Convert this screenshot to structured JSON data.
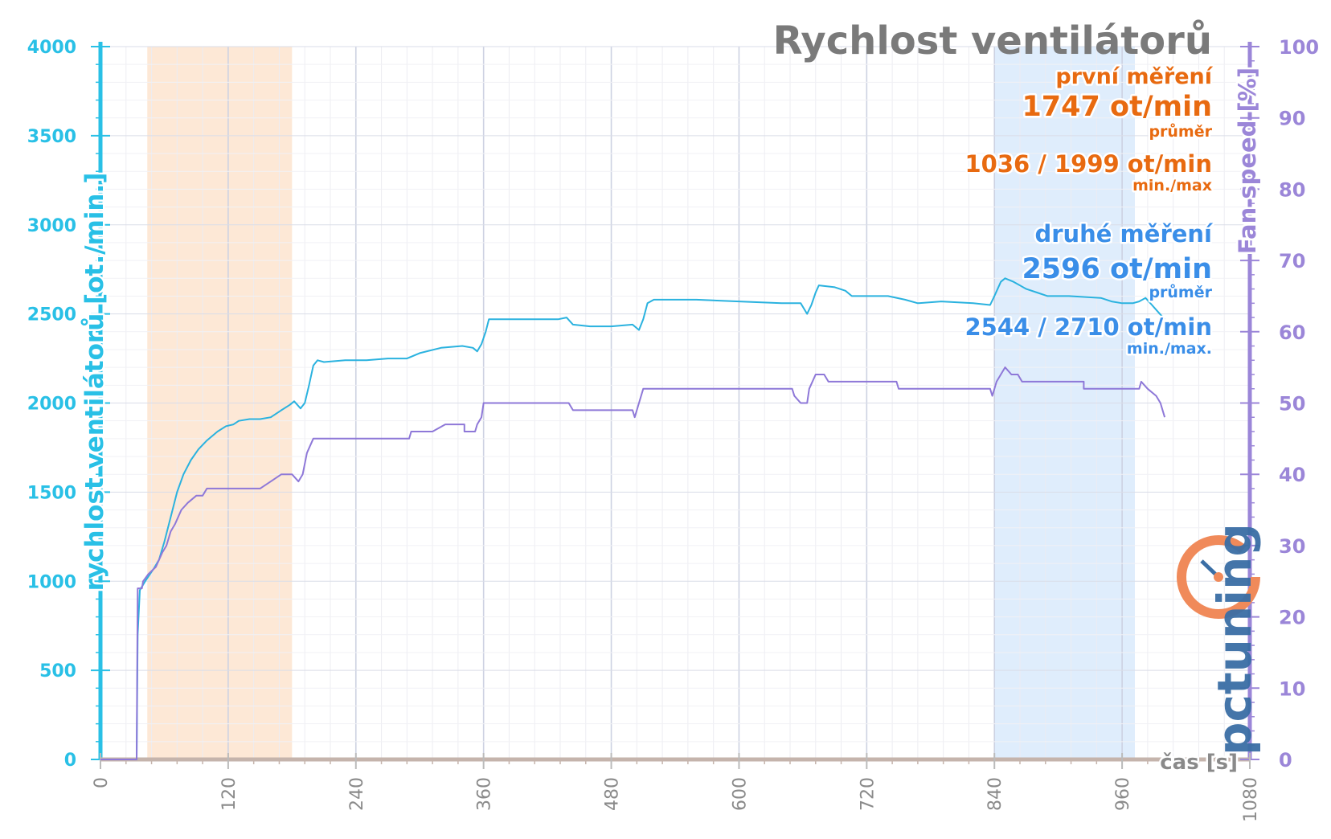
{
  "chart_data": {
    "type": "line",
    "title": "Rychlost ventilátorů",
    "xlabel": "čas [s]",
    "ylabel_left": "rychlost ventilátorů [ot./min.]",
    "ylabel_right": "Fan speed [%]",
    "xlim": [
      0,
      1080
    ],
    "ylim_left": [
      0,
      4000
    ],
    "ylim_right": [
      0,
      100
    ],
    "x_ticks": [
      "0",
      "120",
      "240",
      "360",
      "480",
      "600",
      "720",
      "840",
      "960",
      "1080"
    ],
    "y_ticks_left": [
      "0",
      "500",
      "1000",
      "1500",
      "2000",
      "2500",
      "3000",
      "3500",
      "4000"
    ],
    "y_ticks_right": [
      "0",
      "10",
      "20",
      "30",
      "40",
      "50",
      "60",
      "70",
      "80",
      "90",
      "100"
    ],
    "grid": true,
    "highlight_regions": [
      {
        "x_start": 44,
        "x_end": 180,
        "color": "#fde6d2"
      },
      {
        "x_start": 840,
        "x_end": 972,
        "color": "#dcebfc"
      }
    ],
    "series": [
      {
        "axis": "left",
        "color": "#2ab2df",
        "points": [
          [
            0,
            0
          ],
          [
            34,
            0
          ],
          [
            35,
            700
          ],
          [
            37,
            950
          ],
          [
            42,
            1000
          ],
          [
            50,
            1070
          ],
          [
            55,
            1120
          ],
          [
            60,
            1220
          ],
          [
            66,
            1360
          ],
          [
            72,
            1500
          ],
          [
            78,
            1600
          ],
          [
            85,
            1680
          ],
          [
            92,
            1740
          ],
          [
            100,
            1790
          ],
          [
            110,
            1840
          ],
          [
            118,
            1870
          ],
          [
            125,
            1880
          ],
          [
            130,
            1900
          ],
          [
            140,
            1910
          ],
          [
            150,
            1910
          ],
          [
            160,
            1920
          ],
          [
            170,
            1960
          ],
          [
            178,
            1990
          ],
          [
            182,
            2010
          ],
          [
            188,
            1970
          ],
          [
            192,
            2000
          ],
          [
            196,
            2100
          ],
          [
            200,
            2210
          ],
          [
            204,
            2240
          ],
          [
            210,
            2230
          ],
          [
            230,
            2240
          ],
          [
            250,
            2240
          ],
          [
            270,
            2250
          ],
          [
            288,
            2250
          ],
          [
            300,
            2280
          ],
          [
            320,
            2310
          ],
          [
            340,
            2320
          ],
          [
            350,
            2310
          ],
          [
            354,
            2290
          ],
          [
            358,
            2330
          ],
          [
            362,
            2400
          ],
          [
            365,
            2470
          ],
          [
            375,
            2470
          ],
          [
            400,
            2470
          ],
          [
            430,
            2470
          ],
          [
            438,
            2480
          ],
          [
            444,
            2440
          ],
          [
            460,
            2430
          ],
          [
            480,
            2430
          ],
          [
            500,
            2440
          ],
          [
            506,
            2410
          ],
          [
            510,
            2470
          ],
          [
            514,
            2560
          ],
          [
            520,
            2580
          ],
          [
            560,
            2580
          ],
          [
            600,
            2570
          ],
          [
            640,
            2560
          ],
          [
            658,
            2560
          ],
          [
            664,
            2500
          ],
          [
            668,
            2550
          ],
          [
            672,
            2620
          ],
          [
            675,
            2660
          ],
          [
            690,
            2650
          ],
          [
            700,
            2630
          ],
          [
            706,
            2600
          ],
          [
            720,
            2600
          ],
          [
            740,
            2600
          ],
          [
            756,
            2580
          ],
          [
            768,
            2560
          ],
          [
            790,
            2570
          ],
          [
            820,
            2560
          ],
          [
            836,
            2550
          ],
          [
            840,
            2600
          ],
          [
            846,
            2680
          ],
          [
            850,
            2700
          ],
          [
            858,
            2680
          ],
          [
            870,
            2640
          ],
          [
            880,
            2620
          ],
          [
            890,
            2600
          ],
          [
            910,
            2600
          ],
          [
            940,
            2590
          ],
          [
            950,
            2570
          ],
          [
            960,
            2560
          ],
          [
            970,
            2560
          ],
          [
            976,
            2570
          ],
          [
            982,
            2590
          ],
          [
            988,
            2550
          ],
          [
            994,
            2510
          ],
          [
            1000,
            2470
          ]
        ]
      },
      {
        "axis": "right",
        "color": "#8e78d8",
        "points": [
          [
            0,
            0
          ],
          [
            34,
            0
          ],
          [
            35,
            24
          ],
          [
            39,
            24
          ],
          [
            40,
            25
          ],
          [
            45,
            26
          ],
          [
            52,
            27
          ],
          [
            58,
            29
          ],
          [
            62,
            30
          ],
          [
            66,
            32
          ],
          [
            70,
            33
          ],
          [
            76,
            35
          ],
          [
            82,
            36
          ],
          [
            90,
            37
          ],
          [
            96,
            37
          ],
          [
            100,
            38
          ],
          [
            120,
            38
          ],
          [
            150,
            38
          ],
          [
            160,
            39
          ],
          [
            170,
            40
          ],
          [
            180,
            40
          ],
          [
            186,
            39
          ],
          [
            190,
            40
          ],
          [
            194,
            43
          ],
          [
            200,
            45
          ],
          [
            240,
            45
          ],
          [
            290,
            45
          ],
          [
            292,
            46
          ],
          [
            312,
            46
          ],
          [
            324,
            47
          ],
          [
            342,
            47
          ],
          [
            342,
            46
          ],
          [
            352,
            46
          ],
          [
            354,
            47
          ],
          [
            358,
            48
          ],
          [
            360,
            50
          ],
          [
            440,
            50
          ],
          [
            444,
            49
          ],
          [
            480,
            49
          ],
          [
            500,
            49
          ],
          [
            502,
            48
          ],
          [
            506,
            50
          ],
          [
            510,
            52
          ],
          [
            520,
            52
          ],
          [
            560,
            52
          ],
          [
            600,
            52
          ],
          [
            640,
            52
          ],
          [
            650,
            52
          ],
          [
            652,
            51
          ],
          [
            658,
            50
          ],
          [
            664,
            50
          ],
          [
            666,
            52
          ],
          [
            672,
            54
          ],
          [
            680,
            54
          ],
          [
            684,
            53
          ],
          [
            690,
            53
          ],
          [
            700,
            53
          ],
          [
            720,
            53
          ],
          [
            748,
            53
          ],
          [
            750,
            52
          ],
          [
            770,
            52
          ],
          [
            800,
            52
          ],
          [
            820,
            52
          ],
          [
            836,
            52
          ],
          [
            838,
            51
          ],
          [
            842,
            53
          ],
          [
            846,
            54
          ],
          [
            850,
            55
          ],
          [
            856,
            54
          ],
          [
            862,
            54
          ],
          [
            866,
            53
          ],
          [
            890,
            53
          ],
          [
            920,
            53
          ],
          [
            924,
            53
          ],
          [
            924,
            52
          ],
          [
            960,
            52
          ],
          [
            970,
            52
          ],
          [
            976,
            52
          ],
          [
            978,
            53
          ],
          [
            984,
            52
          ],
          [
            992,
            51
          ],
          [
            996,
            50
          ],
          [
            1000,
            48
          ]
        ]
      }
    ],
    "annotations": [
      {
        "label": "první měření",
        "value": "1747 ot/min",
        "value_caption": "průměr",
        "range": "1036 / 1999 ot/min",
        "range_caption": "min./max",
        "color": "#e86a10"
      },
      {
        "label": "druhé měření",
        "value": "2596 ot/min",
        "value_caption": "průměr",
        "range": "2544 / 2710 ot/min",
        "range_caption": "min./max.",
        "color": "#3a8ee8"
      }
    ]
  },
  "logo": {
    "text": "pctuning",
    "colors": [
      "#f08a5a",
      "#3a6ea5"
    ]
  }
}
